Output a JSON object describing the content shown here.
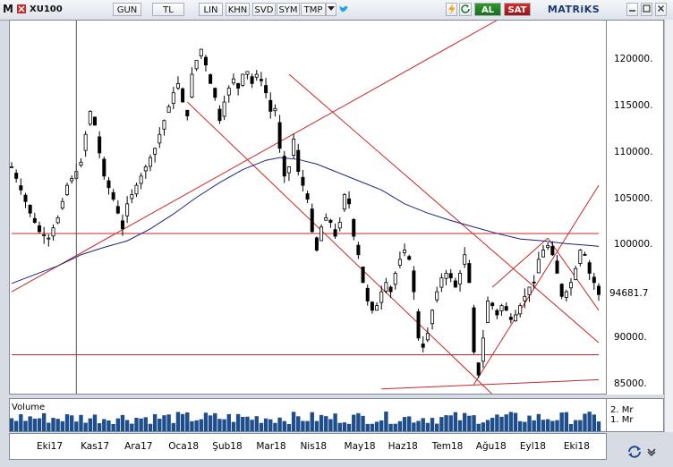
{
  "toolbar": {
    "logo": "M",
    "symbol": "XU100",
    "period": "GUN",
    "currency": "TL",
    "scale": "LIN",
    "buttons": [
      "KHN",
      "SVD",
      "SYM",
      "TMP"
    ],
    "buy_label": "AL",
    "sell_label": "SAT",
    "brand": "MATRiKS"
  },
  "colors": {
    "candle": "#000000",
    "moving_average": "#1a237e",
    "trendline": "#c62828",
    "volume": "#1f4e8c",
    "buy": "#1b7a1b",
    "sell": "#b71c1c"
  },
  "chart_data": {
    "type": "candlestick",
    "symbol": "XU100",
    "last_price": "94681.7",
    "y_ticks": [
      "120000.",
      "115000.",
      "110000.",
      "105000.",
      "100000.",
      "90000.",
      "85000."
    ],
    "ylim": [
      83800,
      124300
    ],
    "x_ticks": [
      "Eki17",
      "Kas17",
      "Ara17",
      "Oca18",
      "Şub18",
      "Mar18",
      "Nis18",
      "May18",
      "Haz18",
      "Tem18",
      "Ağu18",
      "Eyl18",
      "Eki18"
    ],
    "volume_label": "Volume",
    "volume_ticks": [
      "2. Mr",
      "1. Mr"
    ],
    "price_path": [
      [
        0,
        108500
      ],
      [
        2,
        106000
      ],
      [
        4,
        103500
      ],
      [
        6,
        101500
      ],
      [
        8,
        100800
      ],
      [
        10,
        103000
      ],
      [
        12,
        106500
      ],
      [
        14,
        108000
      ],
      [
        15,
        109000
      ],
      [
        16,
        112000
      ],
      [
        17,
        114500
      ],
      [
        18,
        113000
      ],
      [
        19,
        110000
      ],
      [
        20,
        107500
      ],
      [
        22,
        105000
      ],
      [
        23,
        103500
      ],
      [
        24,
        101800
      ],
      [
        25,
        104500
      ],
      [
        27,
        106500
      ],
      [
        29,
        108500
      ],
      [
        31,
        110500
      ],
      [
        33,
        113500
      ],
      [
        35,
        116500
      ],
      [
        36,
        117500
      ],
      [
        37,
        115500
      ],
      [
        38,
        114000
      ],
      [
        39,
        118500
      ],
      [
        40,
        120000
      ],
      [
        41,
        121200
      ],
      [
        42,
        119500
      ],
      [
        43,
        117500
      ],
      [
        44,
        116000
      ],
      [
        45,
        113500
      ],
      [
        46,
        115500
      ],
      [
        47,
        117000
      ],
      [
        48,
        118000
      ],
      [
        49,
        117000
      ],
      [
        50,
        118500
      ],
      [
        51,
        118800
      ],
      [
        52,
        117500
      ],
      [
        53,
        118500
      ],
      [
        54,
        117800
      ],
      [
        55,
        116500
      ],
      [
        56,
        114500
      ],
      [
        57,
        114800
      ],
      [
        58,
        110500
      ],
      [
        59,
        107500
      ],
      [
        60,
        108500
      ],
      [
        61,
        111500
      ],
      [
        62,
        108000
      ],
      [
        63,
        106500
      ],
      [
        64,
        105000
      ],
      [
        65,
        101500
      ],
      [
        66,
        99500
      ],
      [
        67,
        102000
      ],
      [
        68,
        103000
      ],
      [
        69,
        102500
      ],
      [
        70,
        101000
      ],
      [
        71,
        102500
      ],
      [
        72,
        105500
      ],
      [
        73,
        104500
      ],
      [
        74,
        101000
      ],
      [
        75,
        99000
      ],
      [
        76,
        96000
      ],
      [
        77,
        94000
      ],
      [
        78,
        93000
      ],
      [
        79,
        93500
      ],
      [
        80,
        95000
      ],
      [
        81,
        96000
      ],
      [
        82,
        95000
      ],
      [
        83,
        97000
      ],
      [
        84,
        98500
      ],
      [
        85,
        99500
      ],
      [
        86,
        98500
      ],
      [
        87,
        95000
      ],
      [
        88,
        90000
      ],
      [
        89,
        89000
      ],
      [
        90,
        90500
      ],
      [
        91,
        93000
      ],
      [
        92,
        95000
      ],
      [
        93,
        96500
      ],
      [
        94,
        97000
      ],
      [
        95,
        96500
      ],
      [
        96,
        95500
      ],
      [
        97,
        97000
      ],
      [
        98,
        99000
      ],
      [
        99,
        96000
      ],
      [
        100,
        88500
      ],
      [
        101,
        86000
      ],
      [
        102,
        90000
      ],
      [
        103,
        94000
      ],
      [
        104,
        93500
      ],
      [
        105,
        92500
      ],
      [
        106,
        93500
      ],
      [
        107,
        93000
      ],
      [
        108,
        92000
      ],
      [
        109,
        92500
      ],
      [
        110,
        93500
      ],
      [
        111,
        94500
      ],
      [
        112,
        95500
      ],
      [
        113,
        96000
      ],
      [
        114,
        98500
      ],
      [
        115,
        99500
      ],
      [
        116,
        100000
      ],
      [
        117,
        99000
      ],
      [
        118,
        97000
      ],
      [
        119,
        94500
      ],
      [
        120,
        95000
      ],
      [
        121,
        96000
      ],
      [
        122,
        97500
      ],
      [
        123,
        99500
      ],
      [
        124,
        99000
      ],
      [
        125,
        97000
      ],
      [
        126,
        96000
      ],
      [
        127,
        94700
      ]
    ],
    "moving_average": [
      [
        0,
        95900
      ],
      [
        10,
        97800
      ],
      [
        15,
        99000
      ],
      [
        20,
        99800
      ],
      [
        25,
        100500
      ],
      [
        30,
        101800
      ],
      [
        35,
        103400
      ],
      [
        40,
        105200
      ],
      [
        45,
        106800
      ],
      [
        50,
        108200
      ],
      [
        55,
        109200
      ],
      [
        58,
        109500
      ],
      [
        62,
        109300
      ],
      [
        66,
        108800
      ],
      [
        70,
        108000
      ],
      [
        75,
        107000
      ],
      [
        80,
        106000
      ],
      [
        85,
        104500
      ],
      [
        90,
        103500
      ],
      [
        95,
        102700
      ],
      [
        100,
        102000
      ],
      [
        105,
        101300
      ],
      [
        110,
        100700
      ],
      [
        115,
        100500
      ],
      [
        120,
        100200
      ],
      [
        125,
        100000
      ],
      [
        127,
        99900
      ]
    ],
    "trendlines": [
      [
        [
          0,
          95000
        ],
        [
          112,
          126300
        ]
      ],
      [
        [
          0,
          101300
        ],
        [
          127,
          101300
        ]
      ],
      [
        [
          0,
          88200
        ],
        [
          127,
          88200
        ]
      ],
      [
        [
          80,
          84500
        ],
        [
          127,
          85500
        ]
      ],
      [
        [
          60,
          118500
        ],
        [
          127,
          89500
        ]
      ],
      [
        [
          38,
          115500
        ],
        [
          108,
          82000
        ]
      ],
      [
        [
          100,
          85000
        ],
        [
          127,
          106500
        ]
      ],
      [
        [
          104,
          95500
        ],
        [
          116,
          100800
        ]
      ],
      [
        [
          116,
          100800
        ],
        [
          127,
          93000
        ]
      ]
    ],
    "cursor_x": 14
  }
}
